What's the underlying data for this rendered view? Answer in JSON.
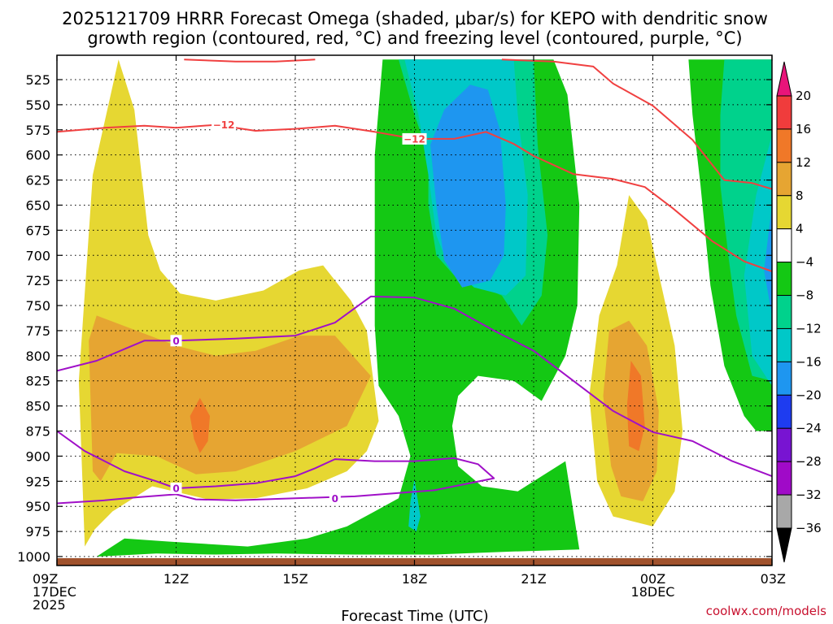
{
  "chart_data": {
    "type": "heatmap",
    "title_line1": "2025121709 HRRR Forecast Omega (shaded, μbar/s) for KEPO with dendritic snow",
    "title_line2": "growth region (contoured, red, °C) and freezing level (contoured, purple, °C)",
    "xlabel": "Forecast Time (UTC)",
    "x_ticks": [
      {
        "x": 0,
        "lines": [
          "09Z",
          "17DEC",
          "2025"
        ]
      },
      {
        "x": 3,
        "lines": [
          "12Z"
        ]
      },
      {
        "x": 6,
        "lines": [
          "15Z"
        ]
      },
      {
        "x": 9,
        "lines": [
          "18Z"
        ]
      },
      {
        "x": 12,
        "lines": [
          "21Z"
        ]
      },
      {
        "x": 15,
        "lines": [
          "00Z",
          "18DEC"
        ]
      },
      {
        "x": 18,
        "lines": [
          "03Z"
        ]
      }
    ],
    "y_ticks": [
      525,
      550,
      575,
      600,
      625,
      650,
      675,
      700,
      725,
      750,
      775,
      800,
      825,
      850,
      875,
      900,
      925,
      950,
      975,
      1000
    ],
    "xlim": [
      0,
      18
    ],
    "ylim_hpa": [
      505,
      1005
    ],
    "grid": true,
    "colorbar": {
      "tick_labels": [
        "20",
        "16",
        "12",
        "8",
        "4",
        "−4",
        "−8",
        "−12",
        "−16",
        "−20",
        "−24",
        "−28",
        "−32",
        "−36"
      ],
      "bands": [
        {
          "color": "#e8147a"
        },
        {
          "color": "#f03c3c"
        },
        {
          "color": "#f07828"
        },
        {
          "color": "#e6a532"
        },
        {
          "color": "#e6d732"
        },
        {
          "color": "#ffffff"
        },
        {
          "color": "#14c814"
        },
        {
          "color": "#00d28c"
        },
        {
          "color": "#00c8c8"
        },
        {
          "color": "#1e96f0"
        },
        {
          "color": "#1e3cf0"
        },
        {
          "color": "#7814d2"
        },
        {
          "color": "#a00ac8"
        },
        {
          "color": "#a8a8a8"
        },
        {
          "color": "#000000"
        }
      ]
    },
    "omega_regions": [
      {
        "level": "4",
        "color": "#e6d732",
        "points": [
          [
            0.7,
            990
          ],
          [
            0.55,
            825
          ],
          [
            0.9,
            620
          ],
          [
            1.55,
            505
          ],
          [
            1.95,
            555
          ],
          [
            2.3,
            680
          ],
          [
            2.6,
            715
          ],
          [
            3.1,
            738
          ],
          [
            4.0,
            745
          ],
          [
            5.2,
            735
          ],
          [
            6.1,
            715
          ],
          [
            6.7,
            710
          ],
          [
            7.4,
            745
          ],
          [
            7.8,
            775
          ],
          [
            8.1,
            865
          ],
          [
            7.8,
            895
          ],
          [
            7.3,
            915
          ],
          [
            6.3,
            932
          ],
          [
            5.0,
            942
          ],
          [
            3.8,
            943
          ],
          [
            2.4,
            930
          ],
          [
            1.4,
            955
          ],
          [
            0.95,
            973
          ]
        ]
      },
      {
        "level": "8",
        "color": "#e6a532",
        "points": [
          [
            0.9,
            915
          ],
          [
            0.8,
            785
          ],
          [
            1.0,
            760
          ],
          [
            2.0,
            775
          ],
          [
            3.0,
            790
          ],
          [
            4.0,
            800
          ],
          [
            5.0,
            795
          ],
          [
            6.1,
            780
          ],
          [
            7.0,
            780
          ],
          [
            7.9,
            820
          ],
          [
            7.3,
            870
          ],
          [
            6.0,
            895
          ],
          [
            4.5,
            915
          ],
          [
            3.5,
            918
          ],
          [
            2.5,
            900
          ],
          [
            1.5,
            897
          ],
          [
            1.1,
            925
          ]
        ]
      },
      {
        "level": "12",
        "color": "#f07828",
        "points": [
          [
            3.6,
            842
          ],
          [
            3.85,
            860
          ],
          [
            3.8,
            885
          ],
          [
            3.6,
            897
          ],
          [
            3.45,
            883
          ],
          [
            3.35,
            860
          ]
        ]
      },
      {
        "level": "-4",
        "color": "#14c814",
        "points": [
          [
            8.2,
            505
          ],
          [
            12.5,
            505
          ],
          [
            12.85,
            540
          ],
          [
            13.15,
            650
          ],
          [
            13.1,
            750
          ],
          [
            12.8,
            800
          ],
          [
            12.2,
            845
          ],
          [
            11.5,
            825
          ],
          [
            10.6,
            820
          ],
          [
            10.1,
            840
          ],
          [
            9.95,
            870
          ],
          [
            10.1,
            910
          ],
          [
            10.7,
            930
          ],
          [
            11.6,
            935
          ],
          [
            12.2,
            920
          ],
          [
            12.8,
            905
          ],
          [
            13.0,
            955
          ],
          [
            13.15,
            993
          ],
          [
            11.5,
            995
          ],
          [
            9.5,
            998
          ],
          [
            7.5,
            998
          ],
          [
            5.5,
            997
          ],
          [
            4.0,
            998
          ],
          [
            2.5,
            997
          ],
          [
            1.0,
            1000
          ],
          [
            1.7,
            982
          ],
          [
            2.8,
            985
          ],
          [
            4.8,
            990
          ],
          [
            6.3,
            982
          ],
          [
            7.3,
            970
          ],
          [
            8.0,
            955
          ],
          [
            8.6,
            942
          ],
          [
            8.9,
            900
          ],
          [
            8.6,
            860
          ],
          [
            8.1,
            830
          ],
          [
            8.0,
            770
          ],
          [
            8.0,
            700
          ],
          [
            8.0,
            600
          ]
        ]
      },
      {
        "level": "-8",
        "color": "#00d28c",
        "points": [
          [
            8.6,
            505
          ],
          [
            12.0,
            505
          ],
          [
            12.1,
            590
          ],
          [
            12.35,
            680
          ],
          [
            12.2,
            740
          ],
          [
            11.7,
            770
          ],
          [
            11.2,
            740
          ],
          [
            10.6,
            730
          ],
          [
            10.0,
            720
          ],
          [
            9.55,
            700
          ],
          [
            9.35,
            650
          ],
          [
            9.35,
            600
          ],
          [
            9.0,
            560
          ]
        ]
      },
      {
        "level": "-12",
        "color": "#00c8c8",
        "points": [
          [
            8.75,
            505
          ],
          [
            11.5,
            505
          ],
          [
            11.6,
            560
          ],
          [
            11.85,
            640
          ],
          [
            11.8,
            720
          ],
          [
            11.3,
            740
          ],
          [
            10.5,
            732
          ],
          [
            9.85,
            710
          ],
          [
            9.55,
            680
          ],
          [
            9.35,
            620
          ],
          [
            9.1,
            560
          ]
        ]
      },
      {
        "level": "-16",
        "color": "#1e96f0",
        "points": [
          [
            9.4,
            590
          ],
          [
            9.75,
            555
          ],
          [
            10.4,
            530
          ],
          [
            10.85,
            535
          ],
          [
            11.15,
            575
          ],
          [
            11.3,
            650
          ],
          [
            11.25,
            700
          ],
          [
            10.9,
            725
          ],
          [
            10.2,
            732
          ],
          [
            9.75,
            705
          ],
          [
            9.55,
            650
          ]
        ]
      },
      {
        "level": "-4",
        "color": "#14c814",
        "points": [
          [
            15.9,
            505
          ],
          [
            18.0,
            505
          ],
          [
            18.0,
            875
          ],
          [
            17.6,
            875
          ],
          [
            17.3,
            860
          ],
          [
            16.8,
            810
          ],
          [
            16.45,
            730
          ],
          [
            16.2,
            630
          ],
          [
            16.0,
            560
          ]
        ]
      },
      {
        "level": "-8",
        "color": "#00d28c",
        "points": [
          [
            16.8,
            505
          ],
          [
            18.0,
            505
          ],
          [
            18.0,
            825
          ],
          [
            17.5,
            820
          ],
          [
            17.1,
            760
          ],
          [
            16.9,
            700
          ],
          [
            16.7,
            630
          ],
          [
            16.7,
            560
          ]
        ]
      },
      {
        "level": "-12",
        "color": "#00c8c8",
        "points": [
          [
            18.0,
            580
          ],
          [
            18.0,
            830
          ],
          [
            17.5,
            800
          ],
          [
            17.3,
            720
          ],
          [
            17.6,
            640
          ]
        ]
      },
      {
        "level": "-16",
        "color": "#1e96f0",
        "points": [
          [
            18.0,
            650
          ],
          [
            18.0,
            760
          ],
          [
            17.8,
            715
          ]
        ]
      },
      {
        "level": "4",
        "color": "#e6d732",
        "points": [
          [
            13.65,
            760
          ],
          [
            14.1,
            710
          ],
          [
            14.4,
            640
          ],
          [
            14.85,
            665
          ],
          [
            15.55,
            790
          ],
          [
            15.75,
            875
          ],
          [
            15.55,
            935
          ],
          [
            15.0,
            970
          ],
          [
            14.5,
            965
          ],
          [
            14.0,
            960
          ],
          [
            13.6,
            925
          ],
          [
            13.4,
            840
          ]
        ]
      },
      {
        "level": "8",
        "color": "#e6a532",
        "points": [
          [
            13.9,
            775
          ],
          [
            14.4,
            765
          ],
          [
            14.85,
            790
          ],
          [
            15.15,
            855
          ],
          [
            15.1,
            915
          ],
          [
            14.75,
            945
          ],
          [
            14.2,
            940
          ],
          [
            13.95,
            910
          ],
          [
            13.75,
            840
          ]
        ]
      },
      {
        "level": "12",
        "color": "#f07828",
        "points": [
          [
            14.45,
            805
          ],
          [
            14.7,
            820
          ],
          [
            14.8,
            870
          ],
          [
            14.65,
            895
          ],
          [
            14.4,
            890
          ],
          [
            14.35,
            850
          ]
        ]
      },
      {
        "level": "-12",
        "color": "#00c8c8",
        "points": [
          [
            9.0,
            923
          ],
          [
            9.15,
            960
          ],
          [
            9.05,
            975
          ],
          [
            8.85,
            970
          ],
          [
            8.9,
            945
          ]
        ]
      }
    ],
    "ground": {
      "color": "#a0522d"
    },
    "contours_red": {
      "color": "#f04040",
      "label": "−12",
      "lines": [
        [
          [
            3.2,
            505
          ],
          [
            4.5,
            507
          ],
          [
            5.5,
            507
          ],
          [
            6.5,
            505
          ]
        ],
        [
          [
            0,
            577
          ],
          [
            1.2,
            573
          ],
          [
            2.2,
            571
          ],
          [
            3,
            573
          ],
          [
            4,
            570
          ],
          [
            5,
            576
          ],
          [
            6,
            574
          ],
          [
            7,
            571
          ],
          [
            8,
            577
          ],
          [
            9,
            584
          ],
          [
            10,
            584
          ],
          [
            10.8,
            577
          ],
          [
            11.5,
            589
          ],
          [
            12,
            601
          ],
          [
            13,
            619
          ],
          [
            14,
            624
          ],
          [
            14.8,
            632
          ],
          [
            15.5,
            653
          ],
          [
            16.5,
            686
          ],
          [
            17.3,
            706
          ],
          [
            18,
            716
          ]
        ],
        [
          [
            11.2,
            505
          ],
          [
            12.5,
            507
          ],
          [
            13.5,
            512
          ],
          [
            14,
            529
          ],
          [
            15,
            551
          ],
          [
            16,
            585
          ],
          [
            16.8,
            625
          ],
          [
            17.5,
            628
          ],
          [
            18,
            634
          ]
        ]
      ],
      "labels_at": [
        [
          4.2,
          570
        ],
        [
          9.0,
          584
        ]
      ]
    },
    "contours_purple": {
      "color": "#a010c8",
      "label": "0",
      "lines": [
        [
          [
            0,
            815
          ],
          [
            1.0,
            805
          ],
          [
            2.2,
            785
          ],
          [
            3.0,
            785
          ],
          [
            4.5,
            783
          ],
          [
            6.0,
            780
          ],
          [
            7.0,
            767
          ],
          [
            7.9,
            741
          ],
          [
            9.0,
            742
          ],
          [
            10.0,
            753
          ],
          [
            11.0,
            775
          ],
          [
            12.0,
            795
          ],
          [
            13.0,
            825
          ],
          [
            14.0,
            855
          ],
          [
            15.0,
            876
          ],
          [
            16.0,
            885
          ],
          [
            17.0,
            905
          ],
          [
            18.0,
            920
          ]
        ],
        [
          [
            0,
            875
          ],
          [
            0.7,
            895
          ],
          [
            1.7,
            915
          ],
          [
            2.5,
            925
          ],
          [
            3.0,
            932
          ],
          [
            4.0,
            930
          ],
          [
            5.0,
            927
          ],
          [
            6.0,
            920
          ],
          [
            6.5,
            912
          ],
          [
            7.0,
            903
          ],
          [
            8.0,
            905
          ],
          [
            9.0,
            905
          ],
          [
            10.0,
            902
          ],
          [
            10.6,
            908
          ],
          [
            11.0,
            922
          ],
          [
            10.5,
            926
          ],
          [
            9.5,
            934
          ],
          [
            8.5,
            937
          ],
          [
            7.5,
            940
          ],
          [
            6.0,
            942
          ],
          [
            4.5,
            944
          ],
          [
            3.5,
            943
          ],
          [
            3.0,
            938
          ],
          [
            2.0,
            941
          ],
          [
            1.2,
            944
          ],
          [
            0,
            947
          ]
        ]
      ],
      "labels_at": [
        [
          3.0,
          785
        ],
        [
          3.0,
          932
        ],
        [
          7.0,
          942
        ]
      ]
    },
    "credit": "coolwx.com/models"
  }
}
